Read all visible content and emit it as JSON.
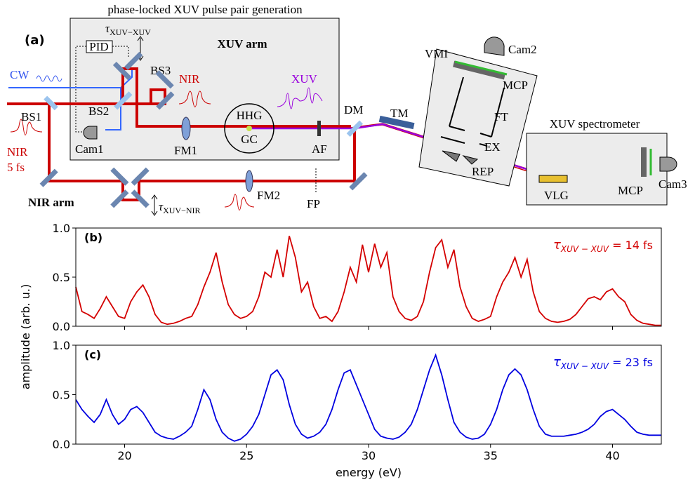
{
  "diagram": {
    "title": "phase-locked XUV pulse pair generation",
    "panel": "(a)",
    "xuv_arm": "XUV arm",
    "pid": "PID",
    "tau_xuv": {
      "symbol": "τ",
      "subscript": "XUV−XUV"
    },
    "bs3": "BS3",
    "cw": "CW",
    "nir_pulse": "NIR",
    "xuv_pulse": "XUV",
    "bs1": "BS1",
    "bs2": "BS2",
    "cam1": "Cam1",
    "fm1": "FM1",
    "hhg": "HHG",
    "gc": "GC",
    "af": "AF",
    "dm": "DM",
    "tm": "TM",
    "vmi": "VMI",
    "cam2": "Cam2",
    "mcp_vmi": "MCP",
    "ft": "FT",
    "ex": "EX",
    "rep": "REP",
    "spectrometer": "XUV spectrometer",
    "vlg": "VLG",
    "mcp_spec": "MCP",
    "cam3": "Cam3",
    "nir_input": "NIR",
    "duration": "5 fs",
    "nir_arm": "NIR arm",
    "tau_nir": {
      "symbol": "τ",
      "subscript": "XUV−NIR"
    },
    "fm2": "FM2",
    "fp": "FP"
  },
  "ylabel": "amplitude (arb. u.)",
  "chart_data": [
    {
      "type": "line",
      "panel": "(b)",
      "annotation": {
        "symbol": "τ",
        "subscript": "XUV − XUV",
        "text": " = 14 fs"
      },
      "color": "#d40000",
      "xlim": [
        18,
        42
      ],
      "ylim": [
        0,
        1
      ],
      "xticks": [
        20,
        25,
        30,
        35,
        40
      ],
      "xtick_labels": false,
      "yticks": [
        {
          "value": 0,
          "label": "0.0"
        },
        {
          "value": 0.5,
          "label": "0.5"
        },
        {
          "value": 1,
          "label": "1.0"
        }
      ],
      "x": [
        18,
        18.25,
        18.5,
        18.75,
        19,
        19.25,
        19.5,
        19.75,
        20,
        20.25,
        20.5,
        20.75,
        21,
        21.25,
        21.5,
        21.75,
        22,
        22.25,
        22.5,
        22.75,
        23,
        23.25,
        23.5,
        23.75,
        24,
        24.25,
        24.5,
        24.75,
        25,
        25.25,
        25.5,
        25.75,
        26,
        26.25,
        26.5,
        26.75,
        27,
        27.25,
        27.5,
        27.75,
        28,
        28.25,
        28.5,
        28.75,
        29,
        29.25,
        29.5,
        29.75,
        30,
        30.25,
        30.5,
        30.75,
        31,
        31.25,
        31.5,
        31.75,
        32,
        32.25,
        32.5,
        32.75,
        33,
        33.25,
        33.5,
        33.75,
        34,
        34.25,
        34.5,
        34.75,
        35,
        35.25,
        35.5,
        35.75,
        36,
        36.25,
        36.5,
        36.75,
        37,
        37.25,
        37.5,
        37.75,
        38,
        38.25,
        38.5,
        38.75,
        39,
        39.25,
        39.5,
        39.75,
        40,
        40.25,
        40.5,
        40.75,
        41,
        41.25,
        41.5,
        41.75,
        42
      ],
      "values": [
        0.4,
        0.15,
        0.12,
        0.08,
        0.18,
        0.3,
        0.2,
        0.1,
        0.08,
        0.25,
        0.35,
        0.42,
        0.3,
        0.12,
        0.04,
        0.02,
        0.03,
        0.05,
        0.08,
        0.1,
        0.22,
        0.4,
        0.55,
        0.75,
        0.45,
        0.22,
        0.12,
        0.08,
        0.1,
        0.15,
        0.3,
        0.55,
        0.5,
        0.78,
        0.5,
        0.92,
        0.7,
        0.35,
        0.45,
        0.2,
        0.08,
        0.1,
        0.05,
        0.15,
        0.35,
        0.6,
        0.45,
        0.83,
        0.55,
        0.84,
        0.6,
        0.75,
        0.3,
        0.15,
        0.08,
        0.06,
        0.1,
        0.25,
        0.55,
        0.8,
        0.88,
        0.6,
        0.78,
        0.4,
        0.2,
        0.08,
        0.05,
        0.07,
        0.1,
        0.3,
        0.45,
        0.55,
        0.7,
        0.5,
        0.68,
        0.35,
        0.15,
        0.08,
        0.05,
        0.04,
        0.05,
        0.07,
        0.12,
        0.2,
        0.28,
        0.3,
        0.27,
        0.35,
        0.38,
        0.3,
        0.25,
        0.12,
        0.06,
        0.03,
        0.02,
        0.01,
        0.01
      ]
    },
    {
      "type": "line",
      "panel": "(c)",
      "annotation": {
        "symbol": "τ",
        "subscript": "XUV − XUV",
        "text": " = 23 fs"
      },
      "color": "#0000e0",
      "xlim": [
        18,
        42
      ],
      "ylim": [
        0,
        1
      ],
      "xticks": [
        20,
        25,
        30,
        35,
        40
      ],
      "xtick_labels": true,
      "yticks": [
        {
          "value": 0,
          "label": "0.0"
        },
        {
          "value": 0.5,
          "label": "0.5"
        },
        {
          "value": 1,
          "label": "1.0"
        }
      ],
      "xlabel": "energy (eV)",
      "x": [
        18,
        18.25,
        18.5,
        18.75,
        19,
        19.25,
        19.5,
        19.75,
        20,
        20.25,
        20.5,
        20.75,
        21,
        21.25,
        21.5,
        21.75,
        22,
        22.25,
        22.5,
        22.75,
        23,
        23.25,
        23.5,
        23.75,
        24,
        24.25,
        24.5,
        24.75,
        25,
        25.25,
        25.5,
        25.75,
        26,
        26.25,
        26.5,
        26.75,
        27,
        27.25,
        27.5,
        27.75,
        28,
        28.25,
        28.5,
        28.75,
        29,
        29.25,
        29.5,
        29.75,
        30,
        30.25,
        30.5,
        30.75,
        31,
        31.25,
        31.5,
        31.75,
        32,
        32.25,
        32.5,
        32.75,
        33,
        33.25,
        33.5,
        33.75,
        34,
        34.25,
        34.5,
        34.75,
        35,
        35.25,
        35.5,
        35.75,
        36,
        36.25,
        36.5,
        36.75,
        37,
        37.25,
        37.5,
        37.75,
        38,
        38.25,
        38.5,
        38.75,
        39,
        39.25,
        39.5,
        39.75,
        40,
        40.25,
        40.5,
        40.75,
        41,
        41.25,
        41.5,
        41.75,
        42
      ],
      "values": [
        0.45,
        0.35,
        0.28,
        0.22,
        0.3,
        0.45,
        0.3,
        0.2,
        0.25,
        0.35,
        0.38,
        0.32,
        0.22,
        0.12,
        0.08,
        0.06,
        0.05,
        0.08,
        0.12,
        0.18,
        0.35,
        0.55,
        0.45,
        0.25,
        0.12,
        0.06,
        0.03,
        0.05,
        0.1,
        0.18,
        0.3,
        0.5,
        0.7,
        0.75,
        0.65,
        0.4,
        0.2,
        0.1,
        0.06,
        0.08,
        0.12,
        0.2,
        0.35,
        0.55,
        0.72,
        0.75,
        0.6,
        0.45,
        0.3,
        0.15,
        0.08,
        0.06,
        0.05,
        0.07,
        0.12,
        0.2,
        0.35,
        0.55,
        0.75,
        0.9,
        0.7,
        0.45,
        0.22,
        0.12,
        0.07,
        0.05,
        0.06,
        0.1,
        0.2,
        0.35,
        0.55,
        0.7,
        0.76,
        0.7,
        0.55,
        0.35,
        0.18,
        0.1,
        0.08,
        0.08,
        0.08,
        0.09,
        0.1,
        0.12,
        0.15,
        0.2,
        0.28,
        0.33,
        0.35,
        0.3,
        0.25,
        0.18,
        0.12,
        0.1,
        0.09,
        0.09,
        0.09
      ]
    }
  ]
}
